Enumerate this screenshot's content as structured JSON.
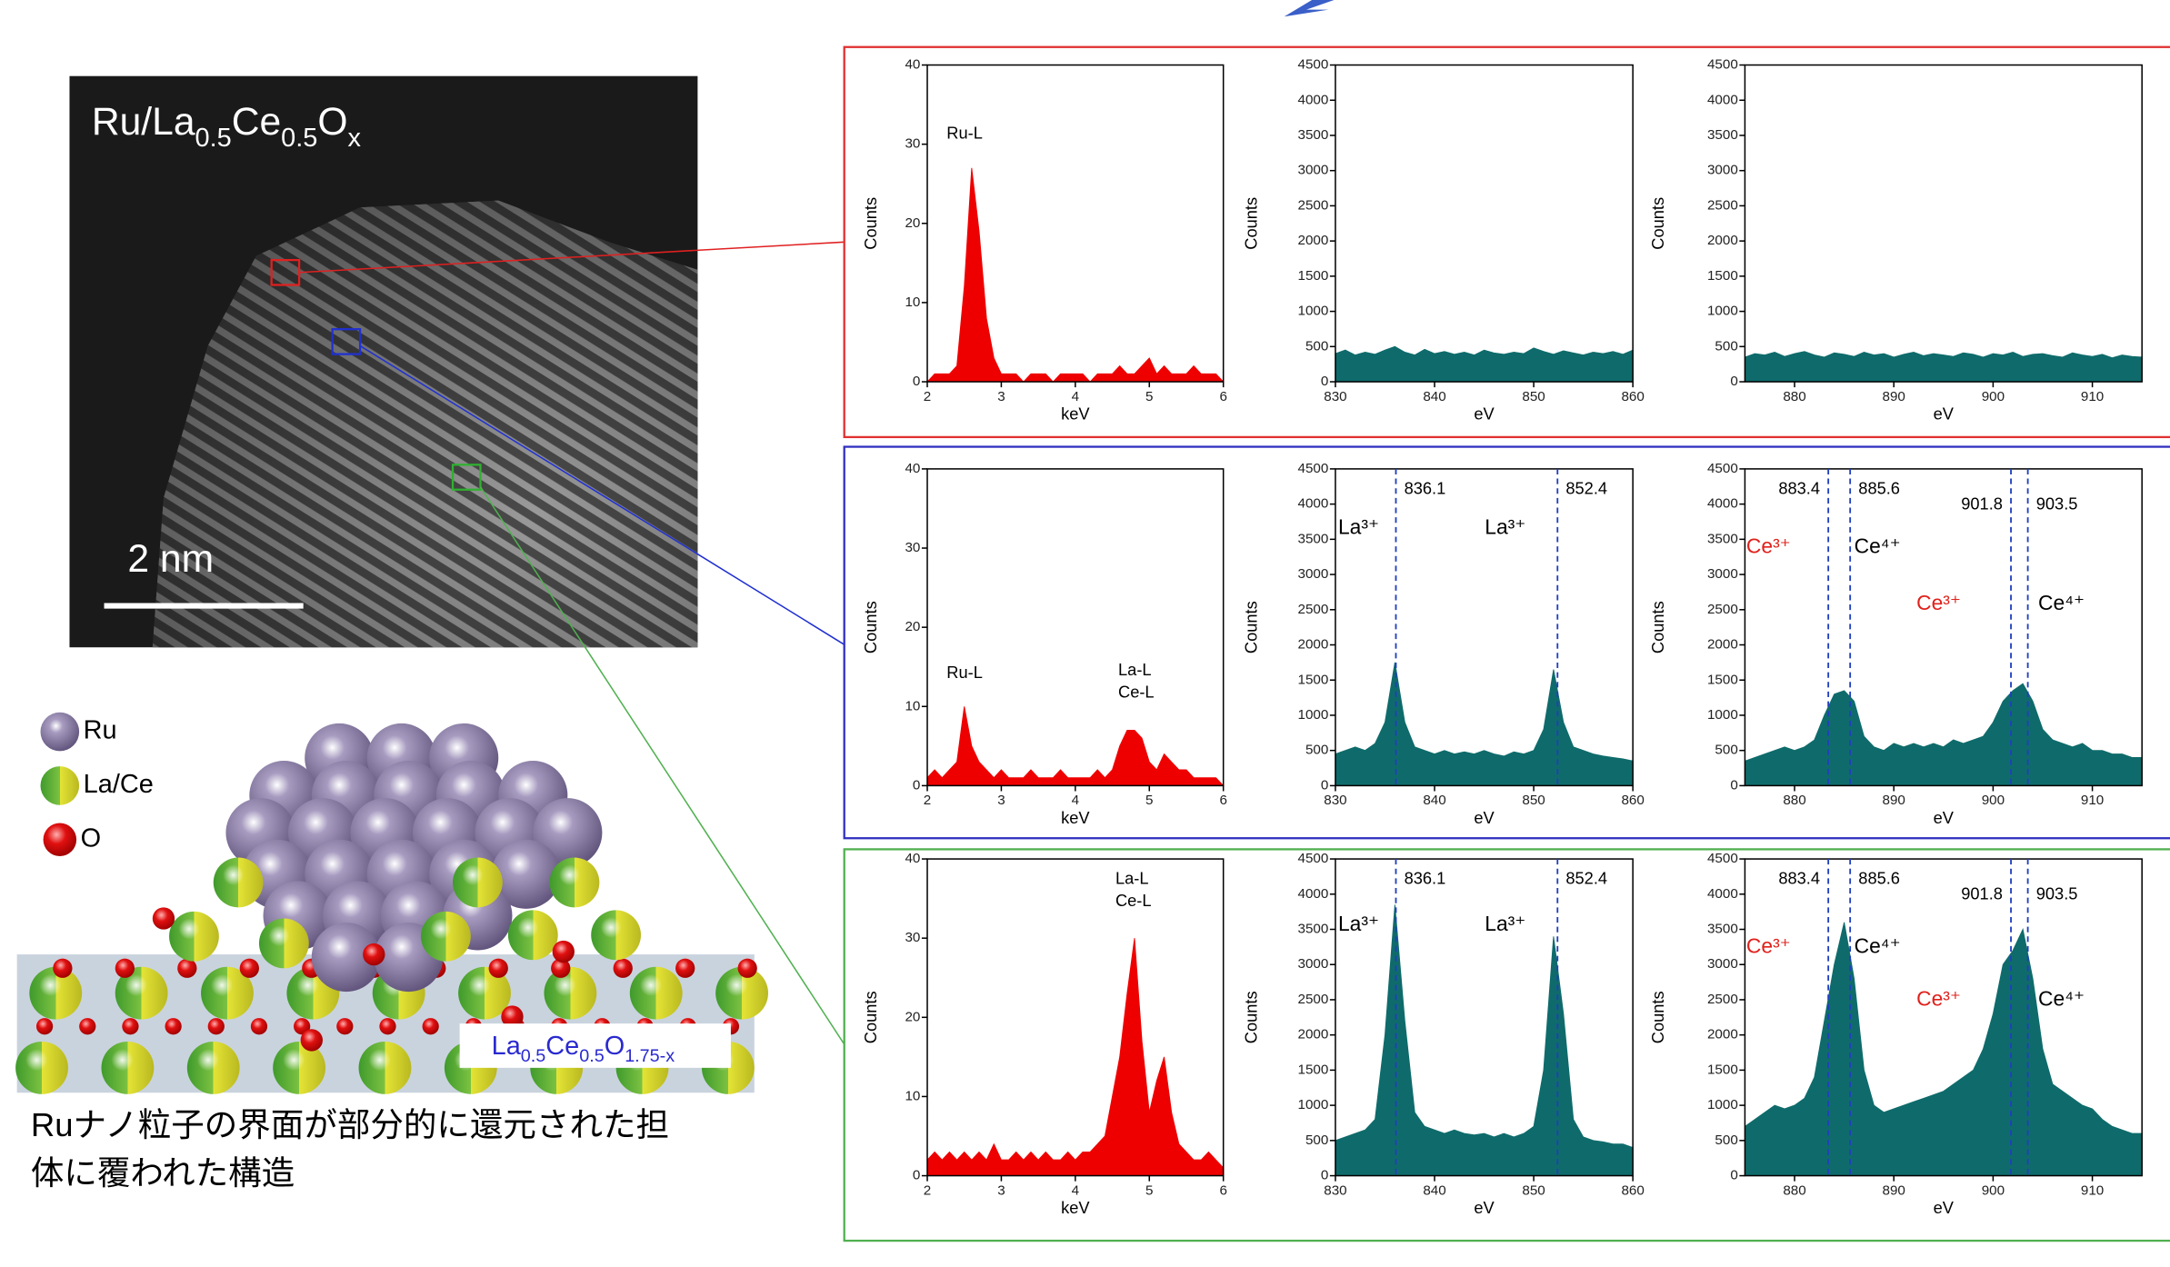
{
  "figure": {
    "stem_label": [
      "Ru/La",
      "0.5",
      "Ce",
      "0.5",
      "O",
      "x"
    ],
    "scale_bar": "2 nm",
    "legend": [
      "Ru",
      "La/Ce",
      "O"
    ],
    "formula": [
      "La",
      "0.5",
      "Ce",
      "0.5",
      "O",
      "1.75-x"
    ],
    "caption": [
      "Ruナノ粒子の界面が部分的に還元された担",
      "体に覆われた構造"
    ]
  },
  "chart_data": [
    {
      "type": "area",
      "color": "#ee0000",
      "xlabel": "keV",
      "ylabel": "Counts",
      "xlim": [
        2,
        6
      ],
      "ylim": [
        0,
        40
      ],
      "xticks": [
        2,
        3,
        4,
        5,
        6
      ],
      "yticks": [
        0,
        10,
        20,
        30,
        40
      ],
      "x": [
        2.0,
        2.1,
        2.2,
        2.3,
        2.4,
        2.5,
        2.6,
        2.7,
        2.8,
        2.9,
        3.0,
        3.1,
        3.2,
        3.3,
        3.4,
        3.5,
        3.6,
        3.7,
        3.8,
        3.9,
        4.0,
        4.1,
        4.2,
        4.3,
        4.4,
        4.5,
        4.6,
        4.7,
        4.8,
        4.9,
        5.0,
        5.1,
        5.2,
        5.3,
        5.4,
        5.5,
        5.6,
        5.7,
        5.8,
        5.9,
        6.0
      ],
      "values": [
        0,
        1,
        1,
        1,
        2,
        12,
        27,
        19,
        8,
        3,
        1,
        1,
        1,
        0,
        1,
        1,
        1,
        0,
        1,
        1,
        1,
        1,
        0,
        1,
        1,
        1,
        2,
        1,
        1,
        2,
        3,
        1,
        2,
        1,
        1,
        1,
        2,
        1,
        1,
        1,
        0
      ],
      "annotations": [
        {
          "text": "Ru-L"
        }
      ]
    },
    {
      "type": "area",
      "color": "#0f6b6b",
      "xlabel": "eV",
      "ylabel": "Counts",
      "xlim": [
        830,
        860
      ],
      "ylim": [
        0,
        4500
      ],
      "xticks": [
        830,
        840,
        850,
        860
      ],
      "yticks": [
        0,
        500,
        1000,
        1500,
        2000,
        2500,
        3000,
        3500,
        4000,
        4500
      ],
      "x": [
        830,
        831,
        832,
        833,
        834,
        835,
        836,
        837,
        838,
        839,
        840,
        841,
        842,
        843,
        844,
        845,
        846,
        847,
        848,
        849,
        850,
        851,
        852,
        853,
        854,
        855,
        856,
        857,
        858,
        859,
        860
      ],
      "values": [
        400,
        450,
        380,
        420,
        390,
        450,
        500,
        420,
        380,
        460,
        400,
        430,
        390,
        420,
        380,
        450,
        410,
        390,
        420,
        400,
        480,
        430,
        390,
        440,
        410,
        380,
        420,
        400,
        430,
        390,
        450
      ]
    },
    {
      "type": "area",
      "color": "#0f6b6b",
      "xlabel": "eV",
      "ylabel": "Counts",
      "xlim": [
        875,
        915
      ],
      "ylim": [
        0,
        4500
      ],
      "xticks": [
        880,
        890,
        900,
        910
      ],
      "yticks": [
        0,
        500,
        1000,
        1500,
        2000,
        2500,
        3000,
        3500,
        4000,
        4500
      ],
      "x": [
        875,
        876,
        877,
        878,
        879,
        880,
        881,
        882,
        883,
        884,
        885,
        886,
        887,
        888,
        889,
        890,
        891,
        892,
        893,
        894,
        895,
        896,
        897,
        898,
        899,
        900,
        901,
        902,
        903,
        904,
        905,
        906,
        907,
        908,
        909,
        910,
        911,
        912,
        913,
        914,
        915
      ],
      "values": [
        350,
        400,
        380,
        420,
        360,
        400,
        430,
        380,
        350,
        410,
        390,
        360,
        420,
        380,
        400,
        350,
        390,
        420,
        370,
        400,
        380,
        360,
        410,
        390,
        350,
        400,
        380,
        420,
        360,
        390,
        400,
        370,
        350,
        410,
        380,
        360,
        390,
        340,
        380,
        360,
        350
      ]
    },
    {
      "type": "area",
      "color": "#ee0000",
      "xlabel": "keV",
      "ylabel": "Counts",
      "xlim": [
        2,
        6
      ],
      "ylim": [
        0,
        40
      ],
      "xticks": [
        2,
        3,
        4,
        5,
        6
      ],
      "yticks": [
        0,
        10,
        20,
        30,
        40
      ],
      "x": [
        2.0,
        2.1,
        2.2,
        2.3,
        2.4,
        2.5,
        2.6,
        2.7,
        2.8,
        2.9,
        3.0,
        3.1,
        3.2,
        3.3,
        3.4,
        3.5,
        3.6,
        3.7,
        3.8,
        3.9,
        4.0,
        4.1,
        4.2,
        4.3,
        4.4,
        4.5,
        4.6,
        4.7,
        4.8,
        4.9,
        5.0,
        5.1,
        5.2,
        5.3,
        5.4,
        5.5,
        5.6,
        5.7,
        5.8,
        5.9,
        6.0
      ],
      "values": [
        1,
        2,
        1,
        2,
        3,
        10,
        5,
        3,
        2,
        1,
        2,
        1,
        1,
        1,
        2,
        1,
        1,
        1,
        2,
        1,
        1,
        1,
        1,
        2,
        1,
        2,
        5,
        7,
        7,
        6,
        3,
        2,
        4,
        3,
        2,
        2,
        1,
        1,
        1,
        1,
        0
      ],
      "annotations": [
        {
          "text": "Ru-L"
        },
        {
          "text": "La-L"
        },
        {
          "text": "Ce-L"
        }
      ]
    },
    {
      "type": "area",
      "color": "#0f6b6b",
      "xlabel": "eV",
      "ylabel": "Counts",
      "xlim": [
        830,
        860
      ],
      "ylim": [
        0,
        4500
      ],
      "xticks": [
        830,
        840,
        850,
        860
      ],
      "yticks": [
        0,
        500,
        1000,
        1500,
        2000,
        2500,
        3000,
        3500,
        4000,
        4500
      ],
      "x": [
        830,
        831,
        832,
        833,
        834,
        835,
        836,
        837,
        838,
        839,
        840,
        841,
        842,
        843,
        844,
        845,
        846,
        847,
        848,
        849,
        850,
        851,
        852,
        853,
        854,
        855,
        856,
        857,
        858,
        859,
        860
      ],
      "values": [
        450,
        500,
        550,
        500,
        600,
        900,
        1750,
        900,
        550,
        500,
        450,
        500,
        450,
        480,
        450,
        500,
        450,
        420,
        480,
        450,
        500,
        800,
        1650,
        900,
        550,
        500,
        450,
        420,
        400,
        380,
        350
      ],
      "vlines": [
        836.1,
        852.4
      ],
      "vline_color": "#1f3fbf",
      "annotations": [
        {
          "text": "La³⁺"
        },
        {
          "text": "La³⁺"
        }
      ]
    },
    {
      "type": "area",
      "color": "#0f6b6b",
      "xlabel": "eV",
      "ylabel": "Counts",
      "xlim": [
        875,
        915
      ],
      "ylim": [
        0,
        4500
      ],
      "xticks": [
        880,
        890,
        900,
        910
      ],
      "yticks": [
        0,
        500,
        1000,
        1500,
        2000,
        2500,
        3000,
        3500,
        4000,
        4500
      ],
      "x": [
        875,
        876,
        877,
        878,
        879,
        880,
        881,
        882,
        883,
        884,
        885,
        886,
        887,
        888,
        889,
        890,
        891,
        892,
        893,
        894,
        895,
        896,
        897,
        898,
        899,
        900,
        901,
        902,
        903,
        904,
        905,
        906,
        907,
        908,
        909,
        910,
        911,
        912,
        913,
        914,
        915
      ],
      "values": [
        350,
        400,
        450,
        500,
        550,
        500,
        550,
        650,
        1000,
        1300,
        1350,
        1200,
        700,
        550,
        500,
        600,
        550,
        600,
        550,
        600,
        550,
        650,
        600,
        650,
        700,
        900,
        1200,
        1350,
        1450,
        1200,
        800,
        650,
        600,
        550,
        600,
        500,
        500,
        450,
        450,
        400,
        400
      ],
      "vlines": [
        883.4,
        885.6,
        901.8,
        903.5
      ],
      "vline_color": "#1f3fbf",
      "annotations": [
        {
          "text": "Ce³⁺",
          "color": "#e0201b"
        },
        {
          "text": "Ce⁴⁺"
        },
        {
          "text": "Ce³⁺",
          "color": "#e0201b"
        },
        {
          "text": "Ce⁴⁺"
        }
      ]
    },
    {
      "type": "area",
      "color": "#ee0000",
      "xlabel": "keV",
      "ylabel": "Counts",
      "xlim": [
        2,
        6
      ],
      "ylim": [
        0,
        40
      ],
      "xticks": [
        2,
        3,
        4,
        5,
        6
      ],
      "yticks": [
        0,
        10,
        20,
        30,
        40
      ],
      "x": [
        2.0,
        2.1,
        2.2,
        2.3,
        2.4,
        2.5,
        2.6,
        2.7,
        2.8,
        2.9,
        3.0,
        3.1,
        3.2,
        3.3,
        3.4,
        3.5,
        3.6,
        3.7,
        3.8,
        3.9,
        4.0,
        4.1,
        4.2,
        4.3,
        4.4,
        4.5,
        4.6,
        4.7,
        4.8,
        4.9,
        5.0,
        5.1,
        5.2,
        5.3,
        5.4,
        5.5,
        5.6,
        5.7,
        5.8,
        5.9,
        6.0
      ],
      "values": [
        2,
        3,
        2,
        3,
        2,
        3,
        2,
        3,
        2,
        4,
        2,
        2,
        3,
        2,
        3,
        2,
        3,
        2,
        2,
        3,
        2,
        3,
        3,
        4,
        5,
        10,
        15,
        23,
        30,
        17,
        8,
        12,
        15,
        8,
        4,
        3,
        2,
        2,
        3,
        2,
        1
      ],
      "annotations": [
        {
          "text": "La-L"
        },
        {
          "text": "Ce-L"
        }
      ]
    },
    {
      "type": "area",
      "color": "#0f6b6b",
      "xlabel": "eV",
      "ylabel": "Counts",
      "xlim": [
        830,
        860
      ],
      "ylim": [
        0,
        4500
      ],
      "xticks": [
        830,
        840,
        850,
        860
      ],
      "yticks": [
        0,
        500,
        1000,
        1500,
        2000,
        2500,
        3000,
        3500,
        4000,
        4500
      ],
      "x": [
        830,
        831,
        832,
        833,
        834,
        835,
        836,
        837,
        838,
        839,
        840,
        841,
        842,
        843,
        844,
        845,
        846,
        847,
        848,
        849,
        850,
        851,
        852,
        853,
        854,
        855,
        856,
        857,
        858,
        859,
        860
      ],
      "values": [
        500,
        550,
        600,
        650,
        800,
        2000,
        3850,
        2200,
        900,
        700,
        650,
        600,
        650,
        600,
        580,
        600,
        550,
        600,
        550,
        600,
        700,
        1500,
        3400,
        2300,
        800,
        550,
        500,
        480,
        450,
        450,
        400
      ],
      "vlines": [
        836.1,
        852.4
      ],
      "vline_color": "#1f3fbf",
      "annotations": [
        {
          "text": "La³⁺"
        },
        {
          "text": "La³⁺"
        }
      ]
    },
    {
      "type": "area",
      "color": "#0f6b6b",
      "xlabel": "eV",
      "ylabel": "Counts",
      "xlim": [
        875,
        915
      ],
      "ylim": [
        0,
        4500
      ],
      "xticks": [
        880,
        890,
        900,
        910
      ],
      "yticks": [
        0,
        500,
        1000,
        1500,
        2000,
        2500,
        3000,
        3500,
        4000,
        4500
      ],
      "x": [
        875,
        876,
        877,
        878,
        879,
        880,
        881,
        882,
        883,
        884,
        885,
        886,
        887,
        888,
        889,
        890,
        891,
        892,
        893,
        894,
        895,
        896,
        897,
        898,
        899,
        900,
        901,
        902,
        903,
        904,
        905,
        906,
        907,
        908,
        909,
        910,
        911,
        912,
        913,
        914,
        915
      ],
      "values": [
        700,
        800,
        900,
        1000,
        950,
        1000,
        1100,
        1400,
        2200,
        3000,
        3600,
        2800,
        1500,
        1000,
        900,
        950,
        1000,
        1050,
        1100,
        1150,
        1200,
        1300,
        1400,
        1500,
        1800,
        2300,
        3000,
        3200,
        3500,
        2800,
        1800,
        1300,
        1200,
        1100,
        1000,
        950,
        800,
        700,
        650,
        600,
        600
      ],
      "vlines": [
        883.4,
        885.6,
        901.8,
        903.5
      ],
      "vline_color": "#1f3fbf",
      "annotations": [
        {
          "text": "Ce³⁺",
          "color": "#e0201b"
        },
        {
          "text": "Ce⁴⁺"
        },
        {
          "text": "Ce³⁺",
          "color": "#e0201b"
        },
        {
          "text": "Ce⁴⁺"
        }
      ]
    }
  ]
}
